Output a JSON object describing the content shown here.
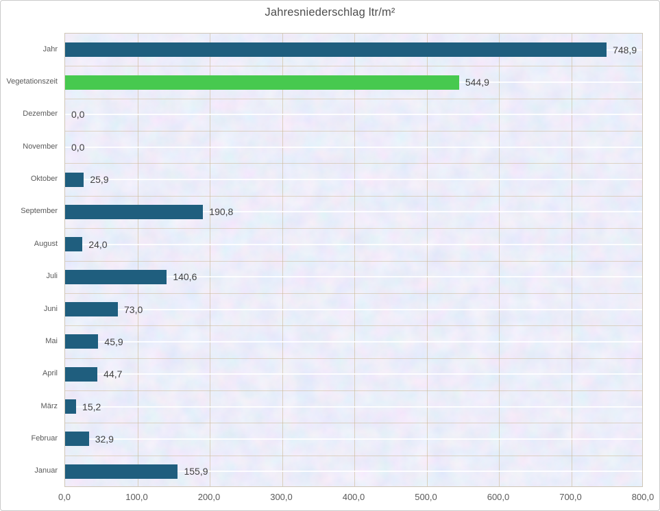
{
  "title": "Jahresniederschlag ltr/m²",
  "chart_data": {
    "type": "bar",
    "orientation": "horizontal",
    "title": "Jahresniederschlag ltr/m²",
    "xlabel": "",
    "ylabel": "",
    "xlim": [
      0,
      800
    ],
    "grid": true,
    "legend": false,
    "categories_top_to_bottom": [
      "Jahr",
      "Vegetationszeit",
      "Dezember",
      "November",
      "Oktober",
      "September",
      "August",
      "Juli",
      "Juni",
      "Mai",
      "April",
      "März",
      "Februar",
      "Januar"
    ],
    "values": [
      748.9,
      544.9,
      0.0,
      0.0,
      25.9,
      190.8,
      24.0,
      140.6,
      73.0,
      45.9,
      44.7,
      15.2,
      32.9,
      155.9
    ],
    "value_labels": [
      "748,9",
      "544,9",
      "0,0",
      "0,0",
      "25,9",
      "190,8",
      "24,0",
      "140,6",
      "73,0",
      "45,9",
      "44,7",
      "15,2",
      "32,9",
      "155,9"
    ],
    "x_tick_labels": [
      "0,0",
      "100,0",
      "200,0",
      "300,0",
      "400,0",
      "500,0",
      "600,0",
      "700,0",
      "800,0"
    ],
    "colors": {
      "default": "#1f5e7e",
      "Vegetationszeit": "#47c94f"
    }
  },
  "style_colors": {
    "plot_background_base": "#d4d9ef",
    "grid_white": "#ffffff",
    "grid_tan": "#c9b48b",
    "value_text": "#404040",
    "axis_text": "#595959",
    "title_text": "#4d4d4d"
  }
}
